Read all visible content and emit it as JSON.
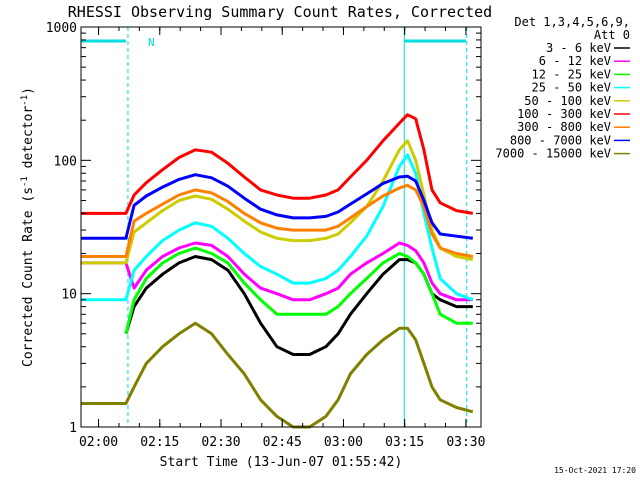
{
  "chart_data": {
    "type": "line",
    "title": "RHESSI Observing Summary Count Rates, Corrected",
    "xlabel": "Start Time (13-Jun-07 01:55:42)",
    "ylabel_parts": {
      "main": "Corrected Count Rate (s",
      "sup1": "-1",
      "mid": " detector",
      "sup2": "-1",
      "end": ")"
    },
    "x_domain_minutes": [
      0,
      98
    ],
    "x_ticks": [
      {
        "label": "02:00",
        "t": 4.3
      },
      {
        "label": "02:15",
        "t": 19.3
      },
      {
        "label": "02:30",
        "t": 34.3
      },
      {
        "label": "02:45",
        "t": 49.3
      },
      {
        "label": "03:00",
        "t": 64.3
      },
      {
        "label": "03:15",
        "t": 79.3
      },
      {
        "label": "03:30",
        "t": 94.3
      }
    ],
    "y_scale": "log",
    "ylim": [
      1,
      1000
    ],
    "y_tick_labels": [
      {
        "label": "1",
        "v": 1
      },
      {
        "label": "10",
        "v": 10
      },
      {
        "label": "100",
        "v": 100
      },
      {
        "label": "1000",
        "v": 1000
      }
    ],
    "legend_header": [
      "Det 1,3,4,5,6,9,",
      "Att 0"
    ],
    "night_flag_label": "N",
    "timestamp": "15-Oct-2021 17:20",
    "series": [
      {
        "name": "3 - 6 keV",
        "color": "#000000",
        "points": [
          [
            11,
            5
          ],
          [
            13,
            8
          ],
          [
            16,
            11
          ],
          [
            20,
            14
          ],
          [
            24,
            17
          ],
          [
            28,
            19
          ],
          [
            32,
            18
          ],
          [
            36,
            15
          ],
          [
            40,
            10
          ],
          [
            44,
            6
          ],
          [
            48,
            4
          ],
          [
            52,
            3.5
          ],
          [
            56,
            3.5
          ],
          [
            60,
            4
          ],
          [
            63,
            5
          ],
          [
            66,
            7
          ],
          [
            70,
            10
          ],
          [
            74,
            14
          ],
          [
            78,
            18
          ],
          [
            80,
            18
          ],
          [
            82,
            17
          ],
          [
            84,
            14
          ],
          [
            86,
            10
          ],
          [
            88,
            9
          ],
          [
            92,
            8
          ],
          [
            96,
            8
          ]
        ]
      },
      {
        "name": "6 - 12 keV",
        "color": "#ff00ff",
        "points": [
          [
            0,
            17
          ],
          [
            11,
            17
          ],
          [
            13,
            11
          ],
          [
            16,
            15
          ],
          [
            20,
            19
          ],
          [
            24,
            22
          ],
          [
            28,
            24
          ],
          [
            32,
            23
          ],
          [
            36,
            19
          ],
          [
            40,
            14
          ],
          [
            44,
            11
          ],
          [
            48,
            10
          ],
          [
            52,
            9
          ],
          [
            56,
            9
          ],
          [
            60,
            10
          ],
          [
            63,
            11
          ],
          [
            66,
            14
          ],
          [
            70,
            17
          ],
          [
            74,
            20
          ],
          [
            78,
            24
          ],
          [
            80,
            23
          ],
          [
            82,
            21
          ],
          [
            84,
            17
          ],
          [
            86,
            12
          ],
          [
            88,
            10
          ],
          [
            92,
            9
          ],
          [
            96,
            9
          ]
        ]
      },
      {
        "name": "12 - 25 keV",
        "color": "#00ff00",
        "points": [
          [
            11,
            5
          ],
          [
            13,
            9
          ],
          [
            16,
            13
          ],
          [
            20,
            17
          ],
          [
            24,
            20
          ],
          [
            28,
            22
          ],
          [
            32,
            20
          ],
          [
            36,
            17
          ],
          [
            40,
            12
          ],
          [
            44,
            9
          ],
          [
            48,
            7
          ],
          [
            52,
            7
          ],
          [
            56,
            7
          ],
          [
            60,
            7
          ],
          [
            63,
            8
          ],
          [
            66,
            10
          ],
          [
            70,
            13
          ],
          [
            74,
            17
          ],
          [
            78,
            20
          ],
          [
            80,
            19
          ],
          [
            82,
            17
          ],
          [
            84,
            14
          ],
          [
            86,
            10
          ],
          [
            88,
            7
          ],
          [
            92,
            6
          ],
          [
            96,
            6
          ]
        ]
      },
      {
        "name": "25 - 50 keV",
        "color": "#00ffff",
        "points": [
          [
            0,
            9
          ],
          [
            11,
            9
          ],
          [
            13,
            15
          ],
          [
            16,
            19
          ],
          [
            20,
            25
          ],
          [
            24,
            30
          ],
          [
            28,
            34
          ],
          [
            32,
            32
          ],
          [
            36,
            26
          ],
          [
            40,
            20
          ],
          [
            44,
            16
          ],
          [
            48,
            14
          ],
          [
            52,
            12
          ],
          [
            56,
            12
          ],
          [
            60,
            13
          ],
          [
            63,
            15
          ],
          [
            66,
            19
          ],
          [
            70,
            27
          ],
          [
            74,
            45
          ],
          [
            78,
            90
          ],
          [
            80,
            110
          ],
          [
            82,
            80
          ],
          [
            84,
            40
          ],
          [
            86,
            22
          ],
          [
            88,
            13
          ],
          [
            92,
            10
          ],
          [
            96,
            9
          ]
        ]
      },
      {
        "name": "50 - 100 keV",
        "color": "#cccc00",
        "points": [
          [
            0,
            17
          ],
          [
            11,
            17
          ],
          [
            13,
            29
          ],
          [
            16,
            34
          ],
          [
            20,
            42
          ],
          [
            24,
            50
          ],
          [
            28,
            54
          ],
          [
            32,
            51
          ],
          [
            36,
            43
          ],
          [
            40,
            35
          ],
          [
            44,
            29
          ],
          [
            48,
            26
          ],
          [
            52,
            25
          ],
          [
            56,
            25
          ],
          [
            60,
            26
          ],
          [
            63,
            28
          ],
          [
            66,
            34
          ],
          [
            70,
            45
          ],
          [
            74,
            70
          ],
          [
            78,
            120
          ],
          [
            80,
            140
          ],
          [
            82,
            100
          ],
          [
            84,
            55
          ],
          [
            86,
            30
          ],
          [
            88,
            22
          ],
          [
            92,
            19
          ],
          [
            96,
            18
          ]
        ]
      },
      {
        "name": "100 - 300 keV",
        "color": "#ff0000",
        "points": [
          [
            0,
            40
          ],
          [
            11,
            40
          ],
          [
            13,
            55
          ],
          [
            16,
            68
          ],
          [
            20,
            85
          ],
          [
            24,
            105
          ],
          [
            28,
            120
          ],
          [
            32,
            115
          ],
          [
            36,
            95
          ],
          [
            40,
            75
          ],
          [
            44,
            60
          ],
          [
            48,
            55
          ],
          [
            52,
            52
          ],
          [
            56,
            52
          ],
          [
            60,
            55
          ],
          [
            63,
            60
          ],
          [
            66,
            75
          ],
          [
            70,
            100
          ],
          [
            74,
            140
          ],
          [
            78,
            190
          ],
          [
            80,
            220
          ],
          [
            82,
            205
          ],
          [
            84,
            120
          ],
          [
            86,
            60
          ],
          [
            88,
            48
          ],
          [
            92,
            42
          ],
          [
            96,
            40
          ]
        ]
      },
      {
        "name": "300 - 800 keV",
        "color": "#ff8000",
        "points": [
          [
            0,
            19
          ],
          [
            11,
            19
          ],
          [
            13,
            35
          ],
          [
            16,
            40
          ],
          [
            20,
            47
          ],
          [
            24,
            55
          ],
          [
            28,
            60
          ],
          [
            32,
            57
          ],
          [
            36,
            49
          ],
          [
            40,
            40
          ],
          [
            44,
            34
          ],
          [
            48,
            31
          ],
          [
            52,
            30
          ],
          [
            56,
            30
          ],
          [
            60,
            30
          ],
          [
            63,
            32
          ],
          [
            66,
            37
          ],
          [
            70,
            45
          ],
          [
            74,
            54
          ],
          [
            78,
            62
          ],
          [
            80,
            65
          ],
          [
            82,
            60
          ],
          [
            84,
            45
          ],
          [
            86,
            28
          ],
          [
            88,
            22
          ],
          [
            92,
            20
          ],
          [
            96,
            19
          ]
        ]
      },
      {
        "name": "800 - 7000 keV",
        "color": "#0000ff",
        "points": [
          [
            0,
            26
          ],
          [
            11,
            26
          ],
          [
            13,
            46
          ],
          [
            16,
            54
          ],
          [
            20,
            63
          ],
          [
            24,
            72
          ],
          [
            28,
            78
          ],
          [
            32,
            74
          ],
          [
            36,
            64
          ],
          [
            40,
            52
          ],
          [
            44,
            43
          ],
          [
            48,
            39
          ],
          [
            52,
            37
          ],
          [
            56,
            37
          ],
          [
            60,
            38
          ],
          [
            63,
            41
          ],
          [
            66,
            47
          ],
          [
            70,
            56
          ],
          [
            74,
            67
          ],
          [
            78,
            75
          ],
          [
            80,
            76
          ],
          [
            82,
            70
          ],
          [
            84,
            50
          ],
          [
            86,
            34
          ],
          [
            88,
            28
          ],
          [
            92,
            27
          ],
          [
            96,
            26
          ]
        ]
      },
      {
        "name": "7000 - 15000 keV",
        "color": "#808000",
        "points": [
          [
            0,
            1.5
          ],
          [
            11,
            1.5
          ],
          [
            13,
            2
          ],
          [
            16,
            3
          ],
          [
            20,
            4
          ],
          [
            24,
            5
          ],
          [
            28,
            6
          ],
          [
            32,
            5
          ],
          [
            36,
            3.5
          ],
          [
            40,
            2.5
          ],
          [
            44,
            1.6
          ],
          [
            48,
            1.2
          ],
          [
            52,
            1
          ],
          [
            56,
            1
          ],
          [
            60,
            1.2
          ],
          [
            63,
            1.6
          ],
          [
            66,
            2.5
          ],
          [
            70,
            3.5
          ],
          [
            74,
            4.5
          ],
          [
            78,
            5.5
          ],
          [
            80,
            5.5
          ],
          [
            82,
            4.5
          ],
          [
            84,
            3
          ],
          [
            86,
            2
          ],
          [
            88,
            1.6
          ],
          [
            92,
            1.4
          ],
          [
            96,
            1.3
          ]
        ]
      }
    ]
  }
}
